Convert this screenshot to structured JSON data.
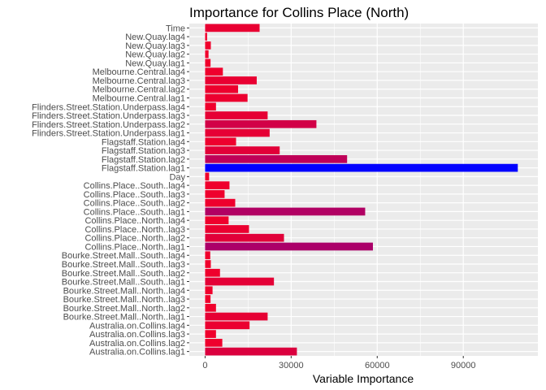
{
  "chart_data": {
    "type": "bar",
    "orientation": "horizontal",
    "title": "Importance for Collins Place (North)",
    "xlabel": "Variable Importance",
    "ylabel": "",
    "xlim": [
      -5500,
      116000
    ],
    "xticks": [
      0,
      30000,
      60000,
      90000
    ],
    "xtick_labels": [
      "0",
      "30000",
      "60000",
      "90000"
    ],
    "grid": true,
    "legend": "none",
    "colors": {
      "low": "#f0002c",
      "high": "#0000ff",
      "panel": "#ebebeb",
      "grid": "#ffffff"
    },
    "categories": [
      "Time",
      "New.Quay.lag4",
      "New.Quay.lag3",
      "New.Quay.lag2",
      "New.Quay.lag1",
      "Melbourne.Central.lag4",
      "Melbourne.Central.lag3",
      "Melbourne.Central.lag2",
      "Melbourne.Central.lag1",
      "Flinders.Street.Station.Underpass.lag4",
      "Flinders.Street.Station.Underpass.lag3",
      "Flinders.Street.Station.Underpass.lag2",
      "Flinders.Street.Station.Underpass.lag1",
      "Flagstaff.Station.lag4",
      "Flagstaff.Station.lag3",
      "Flagstaff.Station.lag2",
      "Flagstaff.Station.lag1",
      "Day",
      "Collins.Place..South..lag4",
      "Collins.Place..South..lag3",
      "Collins.Place..South..lag2",
      "Collins.Place..South..lag1",
      "Collins.Place..North..lag4",
      "Collins.Place..North..lag3",
      "Collins.Place..North..lag2",
      "Collins.Place..North..lag1",
      "Bourke.Street.Mall..South..lag4",
      "Bourke.Street.Mall..South..lag3",
      "Bourke.Street.Mall..South..lag2",
      "Bourke.Street.Mall..South..lag1",
      "Bourke.Street.Mall..North..lag4",
      "Bourke.Street.Mall..North..lag3",
      "Bourke.Street.Mall..North..lag2",
      "Bourke.Street.Mall..North..lag1",
      "Australia.on.Collins.lag4",
      "Australia.on.Collins.lag3",
      "Australia.on.Collins.lag2",
      "Australia.on.Collins.lag1"
    ],
    "values": [
      19000,
      700,
      2000,
      1200,
      1900,
      6200,
      18000,
      11500,
      14800,
      3800,
      21800,
      38800,
      22500,
      10800,
      26000,
      49500,
      109000,
      1400,
      8500,
      6800,
      10500,
      55800,
      8200,
      15300,
      27500,
      58500,
      1800,
      2000,
      5200,
      24000,
      2600,
      1900,
      3800,
      21800,
      15500,
      3800,
      6000,
      32000
    ]
  }
}
